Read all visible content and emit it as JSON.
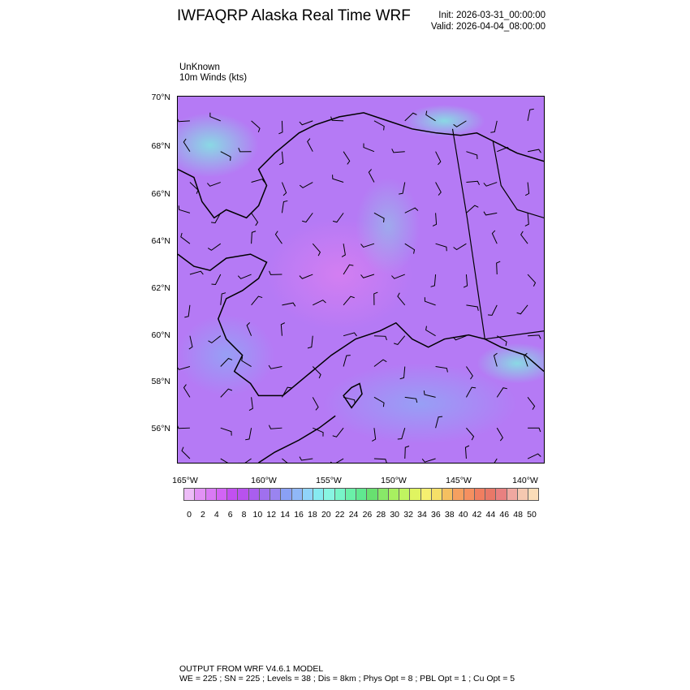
{
  "header": {
    "title": "IWFAQRP Alaska Real Time WRF",
    "init": "Init: 2026-03-31_00:00:00",
    "valid": "Valid: 2026-04-04_08:00:00"
  },
  "field": {
    "line1": "UnKnown",
    "line2": "10m Winds   (kts)"
  },
  "map": {
    "lat_labels": [
      "70°N",
      "68°N",
      "66°N",
      "64°N",
      "62°N",
      "60°N",
      "58°N",
      "56°N"
    ],
    "lon_labels": [
      "165°W",
      "160°W",
      "155°W",
      "150°W",
      "145°W",
      "140°W"
    ],
    "background_color": "#b57af5",
    "coastline_color": "#000000"
  },
  "colorbar": {
    "labels": [
      "0",
      "2",
      "4",
      "6",
      "8",
      "10",
      "12",
      "14",
      "16",
      "18",
      "20",
      "22",
      "24",
      "26",
      "28",
      "30",
      "32",
      "34",
      "36",
      "38",
      "40",
      "42",
      "44",
      "46",
      "48",
      "50"
    ],
    "colors": [
      "#edbcf7",
      "#e291f5",
      "#d97af5",
      "#d264f5",
      "#c250f0",
      "#b852ee",
      "#a95eee",
      "#a070ee",
      "#9a84f0",
      "#8aa0f5",
      "#90b8f8",
      "#90d4fa",
      "#86eaf0",
      "#88f5e2",
      "#78f5c8",
      "#6af0a8",
      "#60e890",
      "#68e070",
      "#88e868",
      "#a8f060",
      "#c0f460",
      "#e0f460",
      "#f5f070",
      "#f5e068",
      "#f5c060",
      "#f5a060",
      "#f59060",
      "#f07e60",
      "#e87868",
      "#e88080",
      "#f0a8a0",
      "#f5c8b0",
      "#fadcb8"
    ]
  },
  "footer": {
    "line1": "OUTPUT FROM WRF V4.6.1 MODEL",
    "line2": "WE = 225 ; SN = 225 ; Levels = 38 ; Dis = 8km ; Phys Opt = 8 ; PBL Opt = 1 ; Cu Opt = 5"
  }
}
